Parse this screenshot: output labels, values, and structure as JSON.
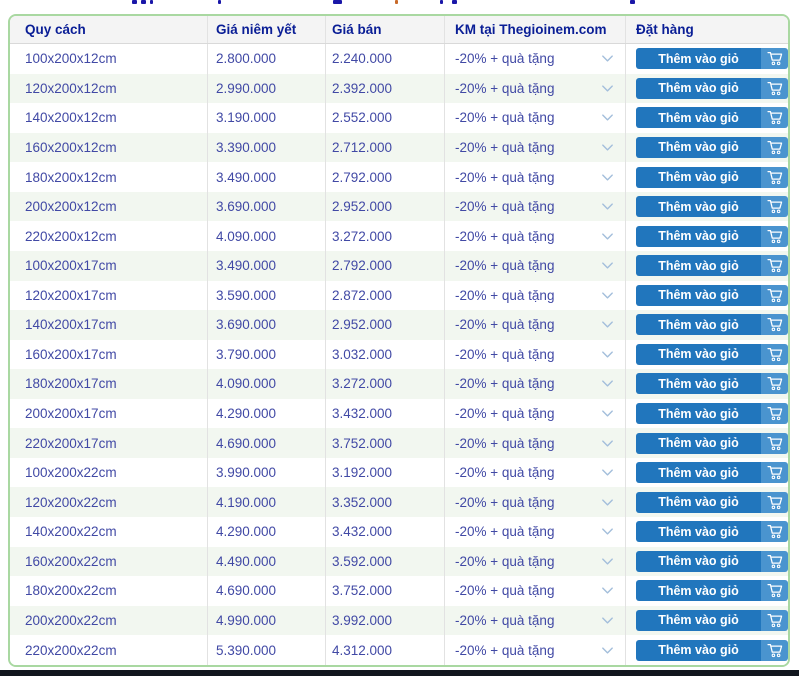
{
  "table": {
    "columns": [
      "Quy cách",
      "Giá niêm yết",
      "Giá bán",
      "KM tại Thegioinem.com",
      "Đặt hàng"
    ],
    "add_to_cart_label": "Thêm vào giỏ",
    "rows": [
      {
        "size": "100x200x12cm",
        "list_price": "2.800.000",
        "sale_price": "2.240.000",
        "promo": "-20% + quà tặng"
      },
      {
        "size": "120x200x12cm",
        "list_price": "2.990.000",
        "sale_price": "2.392.000",
        "promo": "-20% + quà tặng"
      },
      {
        "size": "140x200x12cm",
        "list_price": "3.190.000",
        "sale_price": "2.552.000",
        "promo": "-20% + quà tặng"
      },
      {
        "size": "160x200x12cm",
        "list_price": "3.390.000",
        "sale_price": "2.712.000",
        "promo": "-20% + quà tặng"
      },
      {
        "size": "180x200x12cm",
        "list_price": "3.490.000",
        "sale_price": "2.792.000",
        "promo": "-20% + quà tặng"
      },
      {
        "size": "200x200x12cm",
        "list_price": "3.690.000",
        "sale_price": "2.952.000",
        "promo": "-20% + quà tặng"
      },
      {
        "size": "220x200x12cm",
        "list_price": "4.090.000",
        "sale_price": "3.272.000",
        "promo": "-20% + quà tặng"
      },
      {
        "size": "100x200x17cm",
        "list_price": "3.490.000",
        "sale_price": "2.792.000",
        "promo": "-20% + quà tặng"
      },
      {
        "size": "120x200x17cm",
        "list_price": "3.590.000",
        "sale_price": "2.872.000",
        "promo": "-20% + quà tặng"
      },
      {
        "size": "140x200x17cm",
        "list_price": "3.690.000",
        "sale_price": "2.952.000",
        "promo": "-20% + quà tặng"
      },
      {
        "size": "160x200x17cm",
        "list_price": "3.790.000",
        "sale_price": "3.032.000",
        "promo": "-20% + quà tặng"
      },
      {
        "size": "180x200x17cm",
        "list_price": "4.090.000",
        "sale_price": "3.272.000",
        "promo": "-20% + quà tặng"
      },
      {
        "size": "200x200x17cm",
        "list_price": "4.290.000",
        "sale_price": "3.432.000",
        "promo": "-20% + quà tặng"
      },
      {
        "size": "220x200x17cm",
        "list_price": "4.690.000",
        "sale_price": "3.752.000",
        "promo": "-20% + quà tặng"
      },
      {
        "size": "100x200x22cm",
        "list_price": "3.990.000",
        "sale_price": "3.192.000",
        "promo": "-20% + quà tặng"
      },
      {
        "size": "120x200x22cm",
        "list_price": "4.190.000",
        "sale_price": "3.352.000",
        "promo": "-20% + quà tặng"
      },
      {
        "size": "140x200x22cm",
        "list_price": "4.290.000",
        "sale_price": "3.432.000",
        "promo": "-20% + quà tặng"
      },
      {
        "size": "160x200x22cm",
        "list_price": "4.490.000",
        "sale_price": "3.592.000",
        "promo": "-20% + quà tặng"
      },
      {
        "size": "180x200x22cm",
        "list_price": "4.690.000",
        "sale_price": "3.752.000",
        "promo": "-20% + quà tặng"
      },
      {
        "size": "200x200x22cm",
        "list_price": "4.990.000",
        "sale_price": "3.992.000",
        "promo": "-20% + quà tặng"
      },
      {
        "size": "220x200x22cm",
        "list_price": "5.390.000",
        "sale_price": "4.312.000",
        "promo": "-20% + quà tặng"
      }
    ]
  },
  "icons": {
    "chevron_down": "chevron-down-icon",
    "cart": "cart-icon"
  },
  "colors": {
    "table_border": "#a9d8a1",
    "header_bg": "#f4f4f4",
    "header_text": "#0a1e96",
    "cell_text": "#4149a5",
    "row_alt_bg": "#f2f7f0",
    "button_bg": "#2176bd",
    "button_cart_bg": "#4a94cf",
    "chevron": "#a3bedb",
    "bottom_bar": "#11161e"
  }
}
